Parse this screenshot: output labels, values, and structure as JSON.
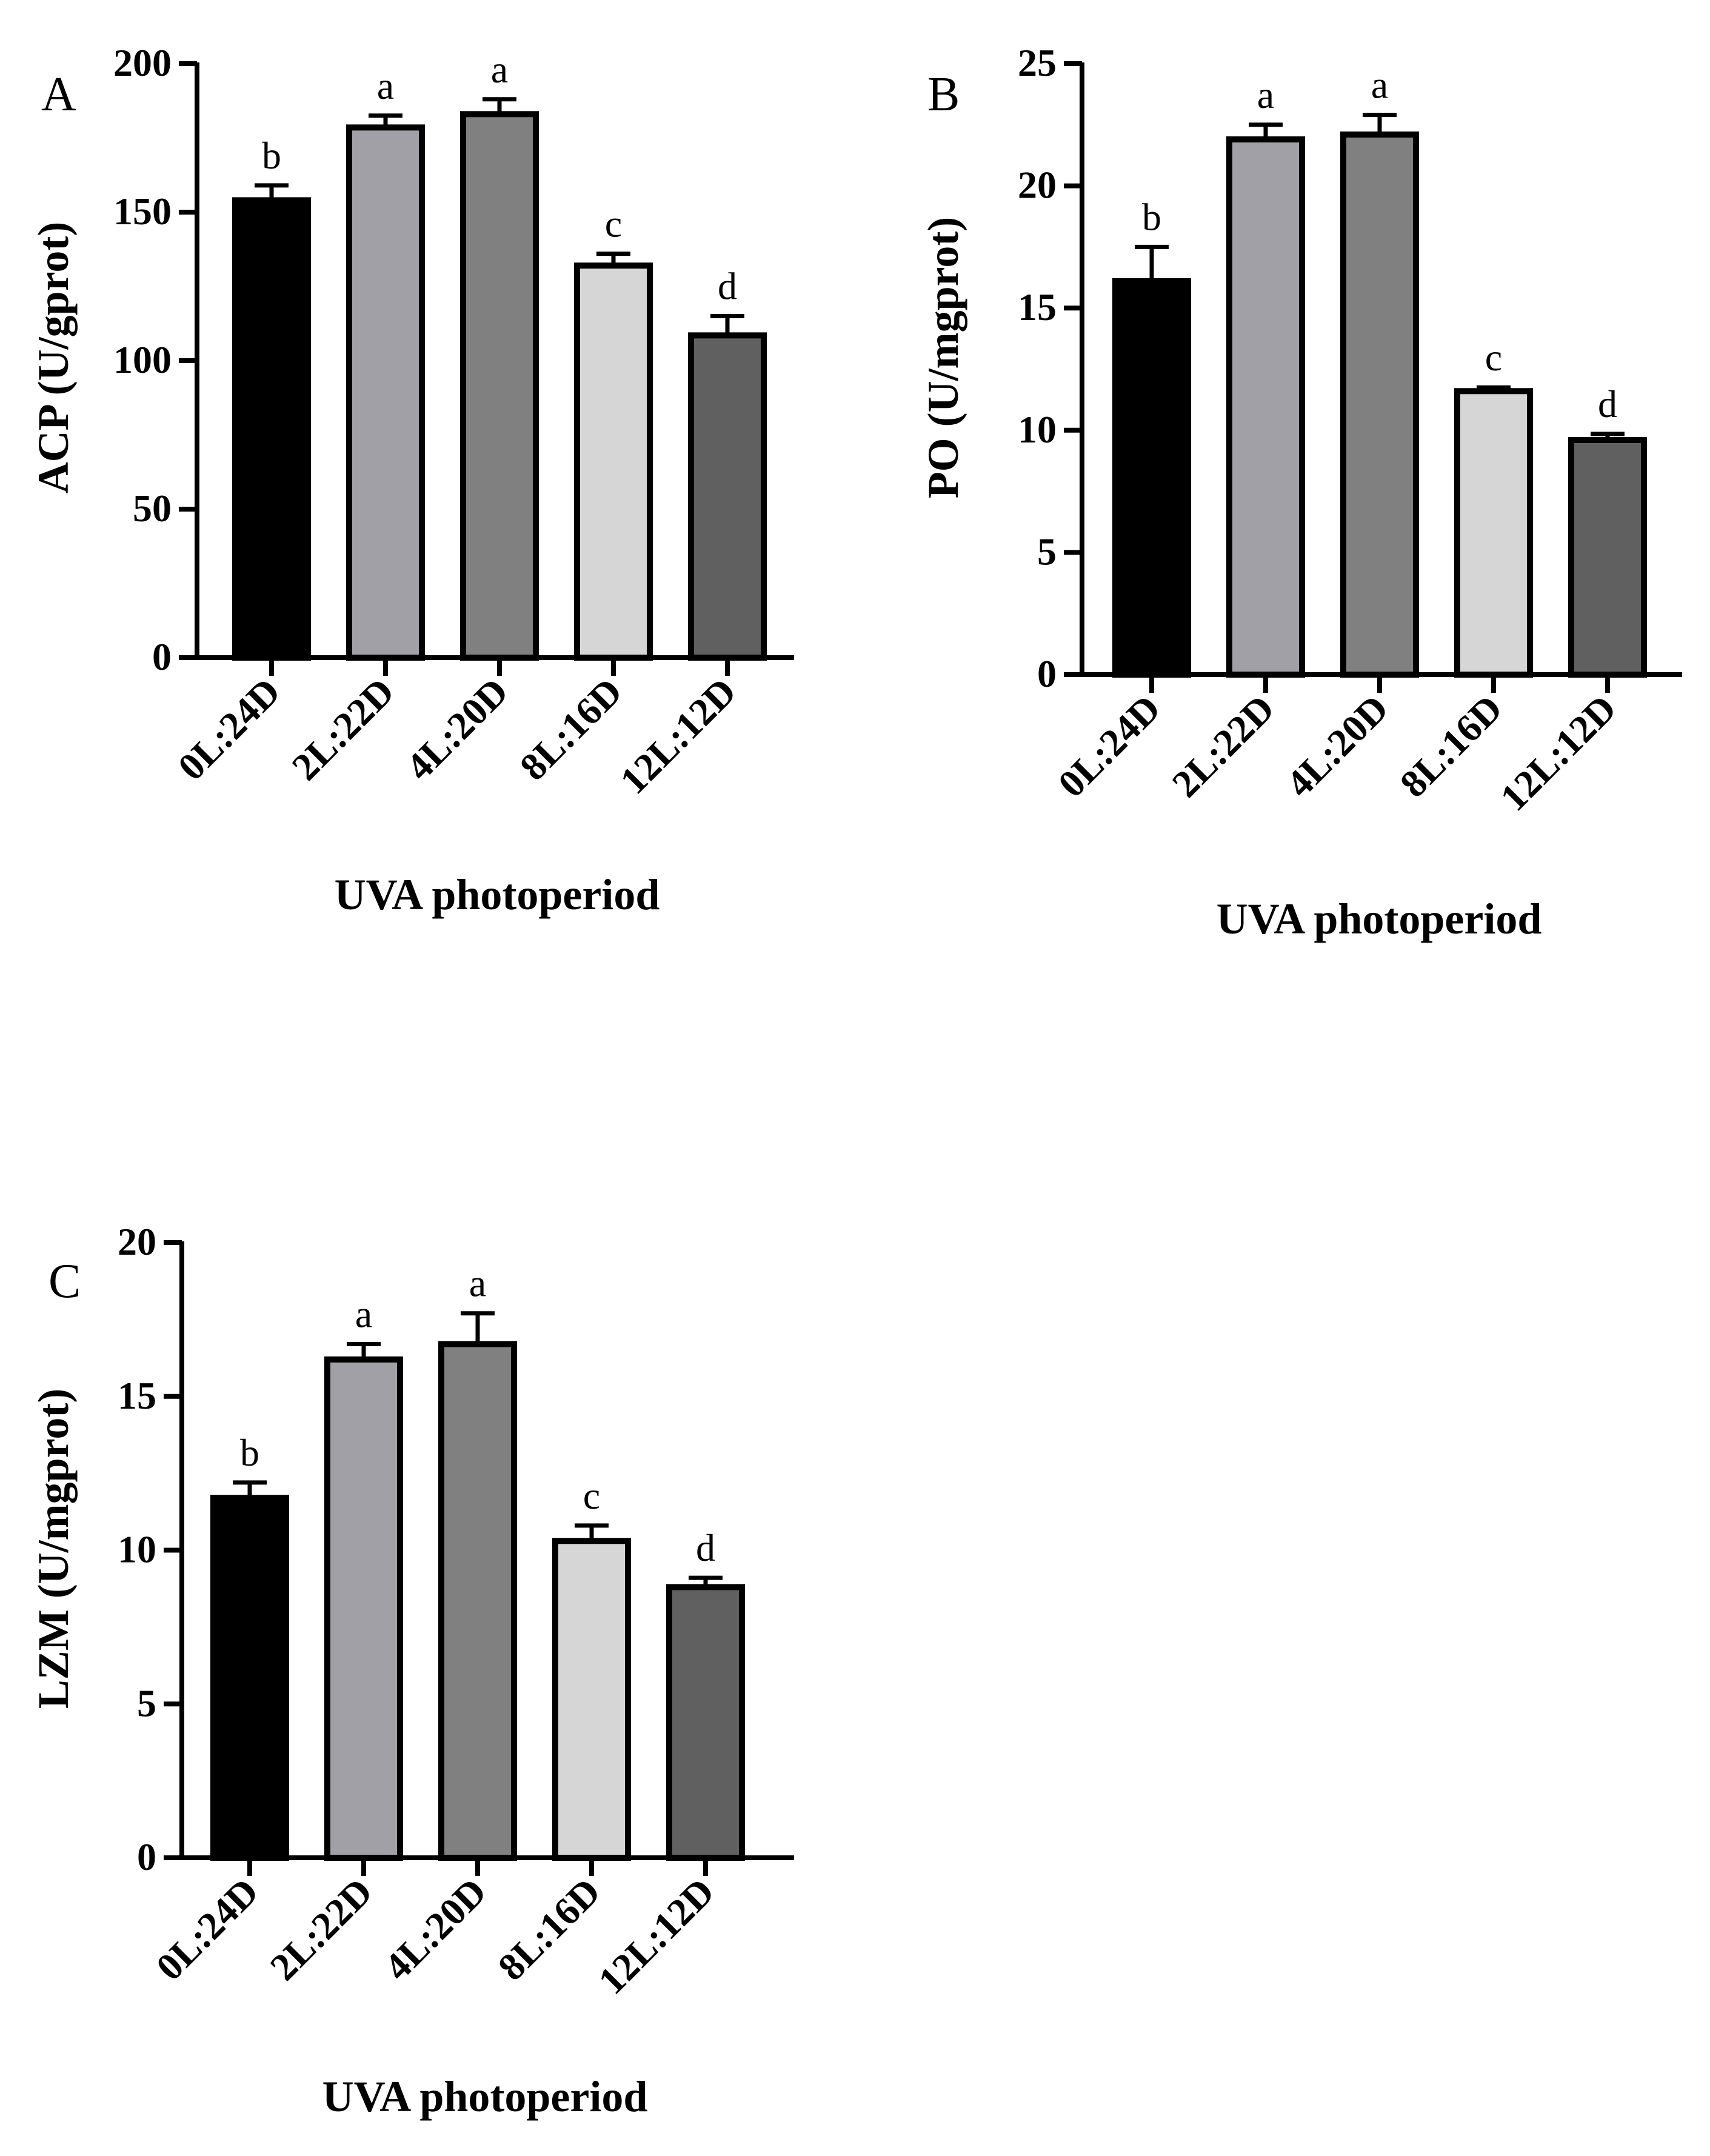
{
  "chart_data": [
    {
      "type": "bar",
      "panel_label": "A",
      "title": "",
      "xlabel": "UVA photoperiod",
      "ylabel": "ACP (U/gprot)",
      "ylim": [
        0,
        200
      ],
      "yticks": [
        "0",
        "50",
        "100",
        "150",
        "200"
      ],
      "categories": [
        "0L:24D",
        "2L:22D",
        "4L:20D",
        "8L:16D",
        "12L:12D"
      ],
      "values": [
        154,
        178.5,
        183,
        132,
        108.5
      ],
      "errors": [
        5,
        4,
        5,
        4,
        6.5
      ],
      "letters": [
        "b",
        "a",
        "a",
        "c",
        "d"
      ],
      "colors": [
        "#000000",
        "#a0a0a6",
        "#808080",
        "#d6d6d6",
        "#606060"
      ]
    },
    {
      "type": "bar",
      "panel_label": "B",
      "title": "",
      "xlabel": "UVA photoperiod",
      "ylabel": "PO (U/mgprot)",
      "ylim": [
        0,
        25
      ],
      "yticks": [
        "0",
        "5",
        "10",
        "15",
        "20",
        "25"
      ],
      "categories": [
        "0L:24D",
        "2L:22D",
        "4L:20D",
        "8L:16D",
        "12L:12D"
      ],
      "values": [
        16.1,
        21.9,
        22.1,
        11.6,
        9.6
      ],
      "errors": [
        1.4,
        0.6,
        0.8,
        0.15,
        0.25
      ],
      "letters": [
        "b",
        "a",
        "a",
        "c",
        "d"
      ],
      "colors": [
        "#000000",
        "#a0a0a6",
        "#808080",
        "#d6d6d6",
        "#606060"
      ]
    },
    {
      "type": "bar",
      "panel_label": "C",
      "title": "",
      "xlabel": "UVA photoperiod",
      "ylabel": "LZM (U/mgprot)",
      "ylim": [
        0,
        20
      ],
      "yticks": [
        "0",
        "5",
        "10",
        "15",
        "20"
      ],
      "categories": [
        "0L:24D",
        "2L:22D",
        "4L:20D",
        "8L:16D",
        "12L:12D"
      ],
      "values": [
        11.7,
        16.2,
        16.7,
        10.3,
        8.8
      ],
      "errors": [
        0.5,
        0.5,
        1.0,
        0.5,
        0.3
      ],
      "letters": [
        "b",
        "a",
        "a",
        "c",
        "d"
      ],
      "colors": [
        "#000000",
        "#a0a0a6",
        "#808080",
        "#d6d6d6",
        "#606060"
      ]
    }
  ]
}
